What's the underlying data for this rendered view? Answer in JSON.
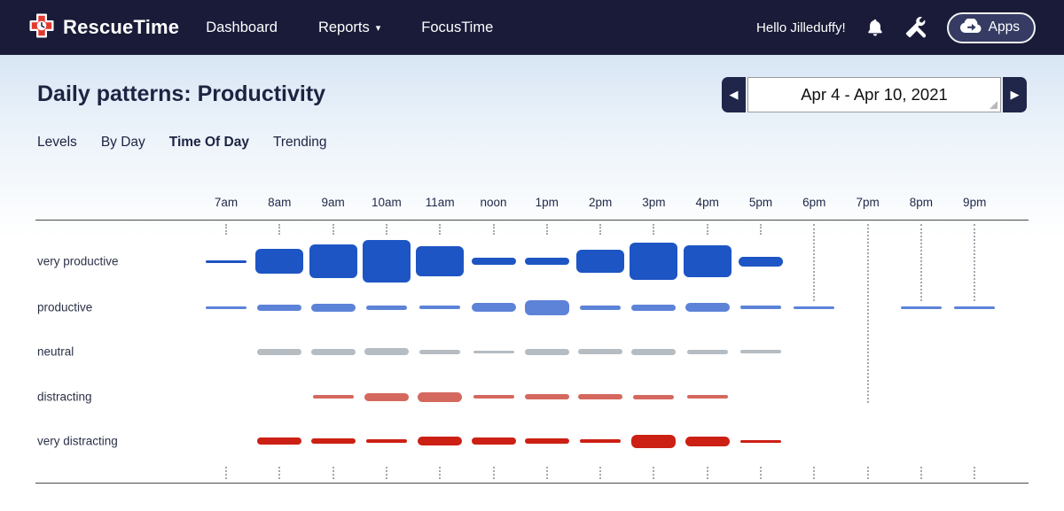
{
  "header": {
    "brand": "RescueTime",
    "nav": [
      {
        "label": "Dashboard",
        "dropdown": false
      },
      {
        "label": "Reports",
        "dropdown": true
      },
      {
        "label": "FocusTime",
        "dropdown": false
      }
    ],
    "greeting": "Hello Jilleduffy!",
    "apps_button": "Apps",
    "colors": {
      "header_bg": "#191b38",
      "pill_bg": "#353b63",
      "logo_red": "#e4392e"
    }
  },
  "page": {
    "title": "Daily patterns: Productivity",
    "date_range": "Apr 4 - Apr 10, 2021",
    "tabs": [
      {
        "label": "Levels",
        "active": false
      },
      {
        "label": "By Day",
        "active": false
      },
      {
        "label": "Time Of Day",
        "active": true
      },
      {
        "label": "Trending",
        "active": false
      }
    ]
  },
  "chart_data": {
    "type": "bar",
    "title": "Time of day productivity pattern",
    "x": [
      "7am",
      "8am",
      "9am",
      "10am",
      "11am",
      "noon",
      "1pm",
      "2pm",
      "3pm",
      "4pm",
      "5pm",
      "6pm",
      "7pm",
      "8pm",
      "9pm"
    ],
    "series": [
      {
        "name": "very productive",
        "color": "#1e55c4",
        "values": [
          3,
          28,
          38,
          48,
          34,
          8,
          8,
          26,
          42,
          36,
          11,
          0,
          0,
          0,
          0
        ]
      },
      {
        "name": "productive",
        "color": "#5d83d8",
        "values": [
          3,
          7,
          9,
          5,
          4,
          10,
          17,
          5,
          7,
          10,
          4,
          3,
          0,
          3,
          3
        ]
      },
      {
        "name": "neutral",
        "color": "#b5bcc2",
        "values": [
          0,
          7,
          7,
          8,
          5,
          3,
          7,
          6,
          7,
          5,
          4,
          0,
          0,
          0,
          0
        ]
      },
      {
        "name": "distracting",
        "color": "#d5685e",
        "values": [
          0,
          0,
          4,
          9,
          11,
          4,
          6,
          6,
          5,
          4,
          0,
          0,
          0,
          0,
          0
        ]
      },
      {
        "name": "very distracting",
        "color": "#cc2014",
        "values": [
          0,
          8,
          6,
          4,
          10,
          8,
          6,
          4,
          15,
          11,
          3,
          0,
          0,
          0,
          0
        ]
      }
    ],
    "value_unit": "relative time spent (bar size, no numeric labels shown)",
    "grid": "dotted column ticks below top axis and above bottom axis",
    "grid_tick_extensions": [
      0,
      0,
      0,
      0,
      0,
      0,
      0,
      0,
      0,
      0,
      0,
      75,
      190,
      75,
      75
    ],
    "legend_position": "row labels on left"
  }
}
